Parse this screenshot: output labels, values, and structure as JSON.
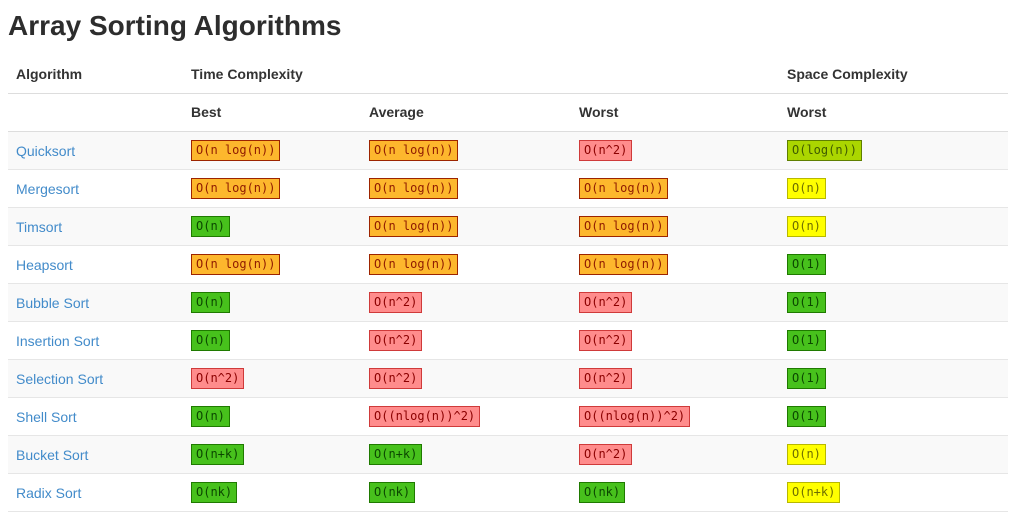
{
  "page": {
    "title": "Array Sorting Algorithms"
  },
  "colors": {
    "link_blue": "#428bca",
    "row_stripe": "#f9f9f9",
    "divider": "#dddddd",
    "badge_orange": {
      "bg": "#fdb72d",
      "border": "#9c2400",
      "text": "#8f1a00"
    },
    "badge_red": {
      "bg": "#ff8c8c",
      "border": "#cf3a3a",
      "text": "#8b0000"
    },
    "badge_green": {
      "bg": "#47c11c",
      "border": "#1f7a00",
      "text": "#0b4700"
    },
    "badge_yellow": {
      "bg": "#ffff00",
      "border": "#b8b800",
      "text": "#6e6e00"
    },
    "badge_yellowgreen": {
      "bg": "#abd600",
      "border": "#5f7f00",
      "text": "#3f5a00"
    }
  },
  "table": {
    "group_headers": {
      "algorithm": "Algorithm",
      "time": "Time Complexity",
      "space": "Space Complexity"
    },
    "sub_headers": {
      "best": "Best",
      "average": "Average",
      "worst": "Worst",
      "space_worst": "Worst"
    },
    "rows": [
      {
        "name": "Quicksort",
        "best": {
          "text": "O(n log(n))",
          "color": "orange"
        },
        "avg": {
          "text": "O(n log(n))",
          "color": "orange"
        },
        "worst": {
          "text": "O(n^2)",
          "color": "red"
        },
        "space": {
          "text": "O(log(n))",
          "color": "yellowgreen"
        }
      },
      {
        "name": "Mergesort",
        "best": {
          "text": "O(n log(n))",
          "color": "orange"
        },
        "avg": {
          "text": "O(n log(n))",
          "color": "orange"
        },
        "worst": {
          "text": "O(n log(n))",
          "color": "orange"
        },
        "space": {
          "text": "O(n)",
          "color": "yellow"
        }
      },
      {
        "name": "Timsort",
        "best": {
          "text": "O(n)",
          "color": "green"
        },
        "avg": {
          "text": "O(n log(n))",
          "color": "orange"
        },
        "worst": {
          "text": "O(n log(n))",
          "color": "orange"
        },
        "space": {
          "text": "O(n)",
          "color": "yellow"
        }
      },
      {
        "name": "Heapsort",
        "best": {
          "text": "O(n log(n))",
          "color": "orange"
        },
        "avg": {
          "text": "O(n log(n))",
          "color": "orange"
        },
        "worst": {
          "text": "O(n log(n))",
          "color": "orange"
        },
        "space": {
          "text": "O(1)",
          "color": "green"
        }
      },
      {
        "name": "Bubble Sort",
        "best": {
          "text": "O(n)",
          "color": "green"
        },
        "avg": {
          "text": "O(n^2)",
          "color": "red"
        },
        "worst": {
          "text": "O(n^2)",
          "color": "red"
        },
        "space": {
          "text": "O(1)",
          "color": "green"
        }
      },
      {
        "name": "Insertion Sort",
        "best": {
          "text": "O(n)",
          "color": "green"
        },
        "avg": {
          "text": "O(n^2)",
          "color": "red"
        },
        "worst": {
          "text": "O(n^2)",
          "color": "red"
        },
        "space": {
          "text": "O(1)",
          "color": "green"
        }
      },
      {
        "name": "Selection Sort",
        "best": {
          "text": "O(n^2)",
          "color": "red"
        },
        "avg": {
          "text": "O(n^2)",
          "color": "red"
        },
        "worst": {
          "text": "O(n^2)",
          "color": "red"
        },
        "space": {
          "text": "O(1)",
          "color": "green"
        }
      },
      {
        "name": "Shell Sort",
        "best": {
          "text": "O(n)",
          "color": "green"
        },
        "avg": {
          "text": "O((nlog(n))^2)",
          "color": "red"
        },
        "worst": {
          "text": "O((nlog(n))^2)",
          "color": "red"
        },
        "space": {
          "text": "O(1)",
          "color": "green"
        }
      },
      {
        "name": "Bucket Sort",
        "best": {
          "text": "O(n+k)",
          "color": "green"
        },
        "avg": {
          "text": "O(n+k)",
          "color": "green"
        },
        "worst": {
          "text": "O(n^2)",
          "color": "red"
        },
        "space": {
          "text": "O(n)",
          "color": "yellow"
        }
      },
      {
        "name": "Radix Sort",
        "best": {
          "text": "O(nk)",
          "color": "green"
        },
        "avg": {
          "text": "O(nk)",
          "color": "green"
        },
        "worst": {
          "text": "O(nk)",
          "color": "green"
        },
        "space": {
          "text": "O(n+k)",
          "color": "yellow"
        }
      }
    ]
  }
}
